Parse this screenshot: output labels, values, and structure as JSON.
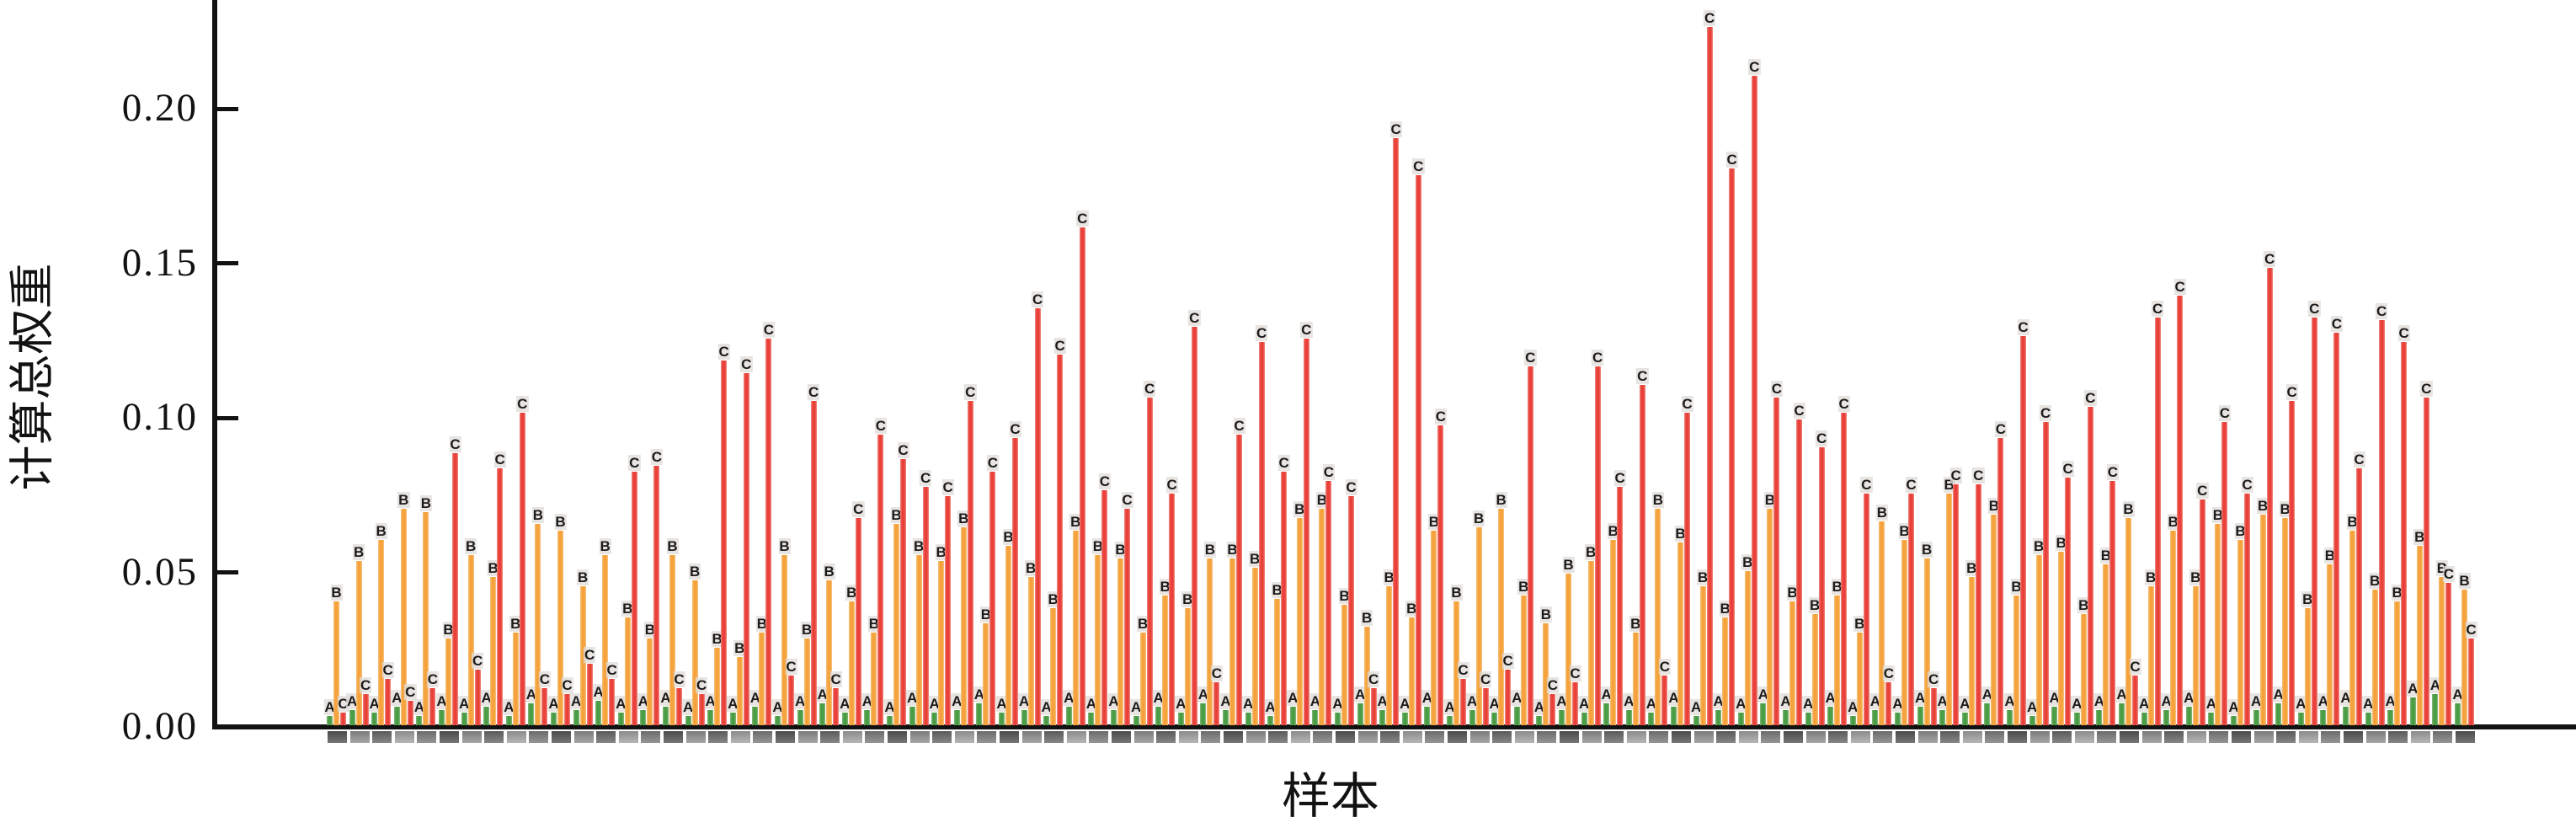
{
  "labels": {
    "y_axis_title": "计算总权重",
    "x_axis_title": "样本"
  },
  "chart_data": {
    "type": "bar",
    "title": "",
    "xlabel": "样本",
    "ylabel": "计算总权重",
    "ylim": [
      0,
      0.235
    ],
    "grid": false,
    "legend": "none (bars labeled in place with letters)",
    "yticks": [
      0.0,
      0.05,
      0.1,
      0.15,
      0.2
    ],
    "ytick_labels": [
      "0.00",
      "0.05",
      "0.10",
      "0.15",
      "0.20"
    ],
    "x_tick_labels_note": "one rotated sample-ID label per group below axis, illegible grey smudges at this resolution",
    "series_letters": [
      "A",
      "B",
      "C"
    ],
    "series_colors": {
      "A": "#4a9c45",
      "B": "#f5a23c",
      "C": "#e8413a"
    },
    "groups_are": "per-sample grouped bars [A, B, C] = 计算总权重 values",
    "groups": [
      [
        0.003,
        0.04,
        0.004
      ],
      [
        0.005,
        0.053,
        0.01
      ],
      [
        0.004,
        0.06,
        0.015
      ],
      [
        0.006,
        0.07,
        0.008
      ],
      [
        0.003,
        0.069,
        0.012
      ],
      [
        0.005,
        0.028,
        0.088
      ],
      [
        0.004,
        0.055,
        0.018
      ],
      [
        0.006,
        0.048,
        0.083
      ],
      [
        0.003,
        0.03,
        0.101
      ],
      [
        0.007,
        0.065,
        0.012
      ],
      [
        0.004,
        0.063,
        0.01
      ],
      [
        0.005,
        0.045,
        0.02
      ],
      [
        0.008,
        0.055,
        0.015
      ],
      [
        0.004,
        0.035,
        0.082
      ],
      [
        0.005,
        0.028,
        0.084
      ],
      [
        0.006,
        0.055,
        0.012
      ],
      [
        0.003,
        0.047,
        0.01
      ],
      [
        0.005,
        0.025,
        0.118
      ],
      [
        0.004,
        0.022,
        0.114
      ],
      [
        0.006,
        0.03,
        0.125
      ],
      [
        0.003,
        0.055,
        0.016
      ],
      [
        0.005,
        0.028,
        0.105
      ],
      [
        0.007,
        0.047,
        0.012
      ],
      [
        0.004,
        0.04,
        0.067
      ],
      [
        0.005,
        0.03,
        0.094
      ],
      [
        0.003,
        0.065,
        0.086
      ],
      [
        0.006,
        0.055,
        0.077
      ],
      [
        0.004,
        0.053,
        0.074
      ],
      [
        0.005,
        0.064,
        0.105
      ],
      [
        0.007,
        0.033,
        0.082
      ],
      [
        0.004,
        0.058,
        0.093
      ],
      [
        0.005,
        0.048,
        0.135
      ],
      [
        0.003,
        0.038,
        0.12
      ],
      [
        0.006,
        0.063,
        0.161
      ],
      [
        0.004,
        0.055,
        0.076
      ],
      [
        0.005,
        0.054,
        0.07
      ],
      [
        0.003,
        0.03,
        0.106
      ],
      [
        0.006,
        0.042,
        0.075
      ],
      [
        0.004,
        0.038,
        0.129
      ],
      [
        0.007,
        0.054,
        0.014
      ],
      [
        0.005,
        0.054,
        0.094
      ],
      [
        0.004,
        0.051,
        0.124
      ],
      [
        0.003,
        0.041,
        0.082
      ],
      [
        0.006,
        0.067,
        0.125
      ],
      [
        0.005,
        0.07,
        0.079
      ],
      [
        0.004,
        0.039,
        0.074
      ],
      [
        0.007,
        0.032,
        0.012
      ],
      [
        0.005,
        0.045,
        0.19
      ],
      [
        0.004,
        0.035,
        0.178
      ],
      [
        0.006,
        0.063,
        0.097
      ],
      [
        0.003,
        0.04,
        0.015
      ],
      [
        0.005,
        0.064,
        0.012
      ],
      [
        0.004,
        0.07,
        0.018
      ],
      [
        0.006,
        0.042,
        0.116
      ],
      [
        0.003,
        0.033,
        0.01
      ],
      [
        0.005,
        0.049,
        0.014
      ],
      [
        0.004,
        0.053,
        0.116
      ],
      [
        0.007,
        0.06,
        0.077
      ],
      [
        0.005,
        0.03,
        0.11
      ],
      [
        0.004,
        0.07,
        0.016
      ],
      [
        0.006,
        0.059,
        0.101
      ],
      [
        0.003,
        0.045,
        0.226
      ],
      [
        0.005,
        0.035,
        0.18
      ],
      [
        0.004,
        0.05,
        0.21
      ],
      [
        0.007,
        0.07,
        0.106
      ],
      [
        0.005,
        0.04,
        0.099
      ],
      [
        0.004,
        0.036,
        0.09
      ],
      [
        0.006,
        0.042,
        0.101
      ],
      [
        0.003,
        0.03,
        0.075
      ],
      [
        0.005,
        0.066,
        0.014
      ],
      [
        0.004,
        0.06,
        0.075
      ],
      [
        0.006,
        0.054,
        0.012
      ],
      [
        0.005,
        0.075,
        0.078
      ],
      [
        0.004,
        0.048,
        0.078
      ],
      [
        0.007,
        0.068,
        0.093
      ],
      [
        0.005,
        0.042,
        0.126
      ],
      [
        0.003,
        0.055,
        0.098
      ],
      [
        0.006,
        0.056,
        0.08
      ],
      [
        0.004,
        0.036,
        0.103
      ],
      [
        0.005,
        0.052,
        0.079
      ],
      [
        0.007,
        0.067,
        0.016
      ],
      [
        0.004,
        0.045,
        0.132
      ],
      [
        0.005,
        0.063,
        0.139
      ],
      [
        0.006,
        0.045,
        0.073
      ],
      [
        0.004,
        0.065,
        0.098
      ],
      [
        0.003,
        0.06,
        0.075
      ],
      [
        0.005,
        0.068,
        0.148
      ],
      [
        0.007,
        0.067,
        0.105
      ],
      [
        0.004,
        0.038,
        0.132
      ],
      [
        0.005,
        0.052,
        0.127
      ],
      [
        0.006,
        0.063,
        0.083
      ],
      [
        0.004,
        0.044,
        0.131
      ],
      [
        0.005,
        0.04,
        0.124
      ],
      [
        0.009,
        0.058,
        0.106
      ],
      [
        0.01,
        0.048,
        0.046
      ],
      [
        0.007,
        0.044,
        0.028
      ]
    ]
  }
}
